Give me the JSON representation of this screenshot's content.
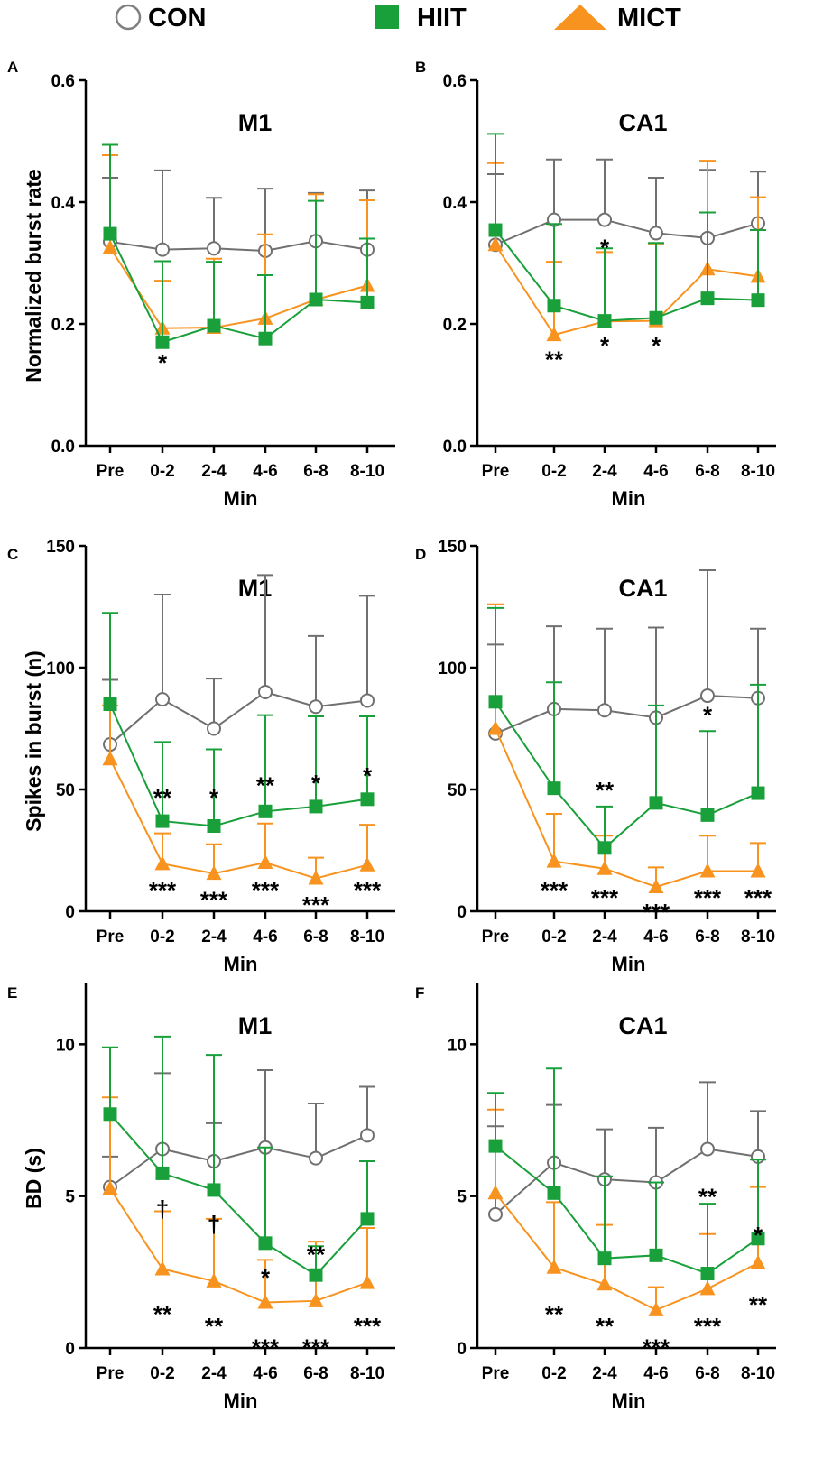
{
  "legend": [
    {
      "name": "CON",
      "marker": "circle",
      "color": "#808080",
      "fill": "#ffffff"
    },
    {
      "name": "HIIT",
      "marker": "square",
      "color": "#19a03a",
      "fill": "#19a03a"
    },
    {
      "name": "MICT",
      "marker": "triangle",
      "color": "#f7931e",
      "fill": "#f7931e"
    }
  ],
  "chart_data": [
    {
      "type": "line",
      "panel": "A",
      "title": "M1",
      "xlabel": "Min",
      "ylabel": "Normalized burst rate",
      "categories": [
        "Pre",
        "0-2",
        "2-4",
        "4-6",
        "6-8",
        "8-10"
      ],
      "ylim": [
        0,
        0.6
      ],
      "yticks": [
        0.0,
        0.2,
        0.4,
        0.6
      ],
      "ytick_labels": [
        "0.0",
        "0.2",
        "0.4",
        "0.6"
      ],
      "series": [
        {
          "name": "CON",
          "values": [
            0.335,
            0.322,
            0.324,
            0.32,
            0.336,
            0.322
          ],
          "errors": [
            0.105,
            0.13,
            0.083,
            0.102,
            0.079,
            0.097
          ]
        },
        {
          "name": "HIIT",
          "values": [
            0.348,
            0.17,
            0.197,
            0.176,
            0.24,
            0.235
          ],
          "errors": [
            0.146,
            0.133,
            0.105,
            0.104,
            0.162,
            0.105
          ]
        },
        {
          "name": "MICT",
          "values": [
            0.325,
            0.193,
            0.194,
            0.209,
            0.24,
            0.263
          ],
          "errors": [
            0.152,
            0.078,
            0.113,
            0.138,
            0.173,
            0.14
          ]
        }
      ],
      "annotations": [
        {
          "text": "*",
          "category": "0-2",
          "y": 0.138
        }
      ]
    },
    {
      "type": "line",
      "panel": "B",
      "title": "CA1",
      "xlabel": "Min",
      "ylabel": "",
      "categories": [
        "Pre",
        "0-2",
        "2-4",
        "4-6",
        "6-8",
        "8-10"
      ],
      "ylim": [
        0,
        0.6
      ],
      "yticks": [
        0.0,
        0.2,
        0.4,
        0.6
      ],
      "ytick_labels": [
        "0.0",
        "0.2",
        "0.4",
        "0.6"
      ],
      "series": [
        {
          "name": "CON",
          "values": [
            0.33,
            0.371,
            0.371,
            0.349,
            0.341,
            0.365
          ],
          "errors": [
            0.116,
            0.099,
            0.099,
            0.091,
            0.112,
            0.085
          ]
        },
        {
          "name": "HIIT",
          "values": [
            0.354,
            0.23,
            0.205,
            0.21,
            0.242,
            0.239
          ],
          "errors": [
            0.158,
            0.134,
            0.119,
            0.123,
            0.141,
            0.115
          ]
        },
        {
          "name": "MICT",
          "values": [
            0.33,
            0.182,
            0.204,
            0.205,
            0.29,
            0.278
          ],
          "errors": [
            0.134,
            0.12,
            0.114,
            0.127,
            0.178,
            0.13
          ]
        }
      ],
      "annotations": [
        {
          "text": "**",
          "category": "0-2",
          "y": 0.143
        },
        {
          "text": "*",
          "category": "2-4",
          "y": 0.327
        },
        {
          "text": "*",
          "category": "2-4",
          "y": 0.166
        },
        {
          "text": "*",
          "category": "4-6",
          "y": 0.166
        }
      ]
    },
    {
      "type": "line",
      "panel": "C",
      "title": "M1",
      "xlabel": "Min",
      "ylabel": "Spikes in burst (n)",
      "categories": [
        "Pre",
        "0-2",
        "2-4",
        "4-6",
        "6-8",
        "8-10"
      ],
      "ylim": [
        0,
        150
      ],
      "yticks": [
        0,
        50,
        100,
        150
      ],
      "ytick_labels": [
        "0",
        "50",
        "100",
        "150"
      ],
      "series": [
        {
          "name": "CON",
          "values": [
            68.5,
            87.0,
            75.0,
            90.0,
            84.0,
            86.5
          ],
          "errors": [
            26.5,
            43.0,
            20.5,
            48.0,
            29.0,
            43.0
          ]
        },
        {
          "name": "HIIT",
          "values": [
            85.0,
            37.0,
            35.0,
            41.0,
            43.0,
            46.0
          ],
          "errors": [
            37.5,
            32.5,
            31.5,
            39.5,
            37.0,
            34.0
          ]
        },
        {
          "name": "MICT",
          "values": [
            62.5,
            19.5,
            15.5,
            20.0,
            13.5,
            19.0
          ],
          "errors": [
            22.0,
            12.5,
            12.0,
            16.0,
            8.5,
            16.5
          ]
        }
      ],
      "annotations": [
        {
          "text": "**",
          "category": "0-2",
          "y": 47
        },
        {
          "text": "***",
          "category": "0-2",
          "y": 9
        },
        {
          "text": "*",
          "category": "2-4",
          "y": 47
        },
        {
          "text": "***",
          "category": "2-4",
          "y": 5
        },
        {
          "text": "**",
          "category": "4-6",
          "y": 52
        },
        {
          "text": "***",
          "category": "4-6",
          "y": 9
        },
        {
          "text": "*",
          "category": "6-8",
          "y": 53
        },
        {
          "text": "***",
          "category": "6-8",
          "y": 3
        },
        {
          "text": "*",
          "category": "8-10",
          "y": 56
        },
        {
          "text": "***",
          "category": "8-10",
          "y": 9
        }
      ]
    },
    {
      "type": "line",
      "panel": "D",
      "title": "CA1",
      "xlabel": "Min",
      "ylabel": "",
      "categories": [
        "Pre",
        "0-2",
        "2-4",
        "4-6",
        "6-8",
        "8-10"
      ],
      "ylim": [
        0,
        150
      ],
      "yticks": [
        0,
        50,
        100,
        150
      ],
      "ytick_labels": [
        "0",
        "50",
        "100",
        "150"
      ],
      "series": [
        {
          "name": "CON",
          "values": [
            73.0,
            83.0,
            82.5,
            79.5,
            88.5,
            87.5
          ],
          "errors": [
            36.5,
            34.0,
            33.5,
            37.0,
            51.5,
            28.5
          ]
        },
        {
          "name": "HIIT",
          "values": [
            86.0,
            50.5,
            26.0,
            44.5,
            39.5,
            48.5
          ],
          "errors": [
            38.5,
            43.5,
            17.0,
            40.0,
            34.5,
            44.5
          ]
        },
        {
          "name": "MICT",
          "values": [
            75.0,
            20.5,
            17.5,
            10.0,
            16.5,
            16.5
          ],
          "errors": [
            51.0,
            19.5,
            13.5,
            8.0,
            14.5,
            11.5
          ]
        }
      ],
      "annotations": [
        {
          "text": "**",
          "category": "2-4",
          "y": 50
        },
        {
          "text": "***",
          "category": "0-2",
          "y": 9
        },
        {
          "text": "***",
          "category": "2-4",
          "y": 6
        },
        {
          "text": "***",
          "category": "4-6",
          "y": 0
        },
        {
          "text": "*",
          "category": "6-8",
          "y": 81
        },
        {
          "text": "***",
          "category": "6-8",
          "y": 6
        },
        {
          "text": "***",
          "category": "8-10",
          "y": 6
        }
      ]
    },
    {
      "type": "line",
      "panel": "E",
      "title": "M1",
      "xlabel": "Min",
      "ylabel": "BD (s)",
      "categories": [
        "Pre",
        "0-2",
        "2-4",
        "4-6",
        "6-8",
        "8-10"
      ],
      "ylim": [
        0,
        12
      ],
      "yticks": [
        0,
        5,
        10
      ],
      "ytick_labels": [
        "0",
        "5",
        "10"
      ],
      "series": [
        {
          "name": "CON",
          "values": [
            5.3,
            6.55,
            6.15,
            6.6,
            6.25,
            7.0
          ],
          "errors": [
            1.0,
            2.5,
            1.25,
            2.55,
            1.8,
            1.6
          ]
        },
        {
          "name": "HIIT",
          "values": [
            7.7,
            5.75,
            5.2,
            3.45,
            2.4,
            4.25
          ],
          "errors": [
            2.2,
            4.5,
            4.45,
            3.15,
            0.95,
            1.9
          ]
        },
        {
          "name": "MICT",
          "values": [
            5.25,
            2.6,
            2.2,
            1.5,
            1.55,
            2.15
          ],
          "errors": [
            3.0,
            1.9,
            2.05,
            1.4,
            1.95,
            1.8
          ]
        }
      ],
      "annotations": [
        {
          "text": "†",
          "category": "0-2",
          "y": 4.6
        },
        {
          "text": "†",
          "category": "2-4",
          "y": 4.1
        },
        {
          "text": "*",
          "category": "4-6",
          "y": 2.35
        },
        {
          "text": "**",
          "category": "6-8",
          "y": 3.1
        },
        {
          "text": "**",
          "category": "0-2",
          "y": 1.15
        },
        {
          "text": "**",
          "category": "2-4",
          "y": 0.75
        },
        {
          "text": "***",
          "category": "4-6",
          "y": 0.05
        },
        {
          "text": "***",
          "category": "6-8",
          "y": 0.05
        },
        {
          "text": "***",
          "category": "8-10",
          "y": 0.75
        }
      ]
    },
    {
      "type": "line",
      "panel": "F",
      "title": "CA1",
      "xlabel": "Min",
      "ylabel": "",
      "categories": [
        "Pre",
        "0-2",
        "2-4",
        "4-6",
        "6-8",
        "8-10"
      ],
      "ylim": [
        0,
        12
      ],
      "yticks": [
        0,
        5,
        10
      ],
      "ytick_labels": [
        "0",
        "5",
        "10"
      ],
      "series": [
        {
          "name": "CON",
          "values": [
            4.4,
            6.1,
            5.55,
            5.45,
            6.55,
            6.3
          ],
          "errors": [
            2.9,
            1.9,
            1.65,
            1.8,
            2.2,
            1.5
          ]
        },
        {
          "name": "HIIT",
          "values": [
            6.65,
            5.1,
            2.95,
            3.05,
            2.45,
            3.6
          ],
          "errors": [
            1.75,
            4.1,
            2.7,
            2.4,
            2.3,
            2.6
          ]
        },
        {
          "name": "MICT",
          "values": [
            5.1,
            2.65,
            2.1,
            1.25,
            1.95,
            2.8
          ],
          "errors": [
            2.75,
            2.15,
            1.95,
            0.75,
            1.8,
            2.5
          ]
        }
      ],
      "annotations": [
        {
          "text": "**",
          "category": "0-2",
          "y": 1.15
        },
        {
          "text": "**",
          "category": "2-4",
          "y": 0.75
        },
        {
          "text": "***",
          "category": "4-6",
          "y": 0.05
        },
        {
          "text": "**",
          "category": "6-8",
          "y": 5.0
        },
        {
          "text": "***",
          "category": "6-8",
          "y": 0.75
        },
        {
          "text": "*",
          "category": "8-10",
          "y": 3.75
        },
        {
          "text": "**",
          "category": "8-10",
          "y": 1.45
        }
      ]
    }
  ]
}
